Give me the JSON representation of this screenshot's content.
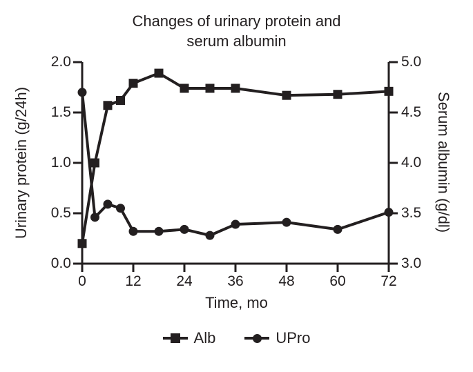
{
  "chart_data": {
    "type": "line",
    "title": "Changes of urinary protein and serum albumin",
    "title_lines": [
      "Changes of urinary protein and",
      "serum albumin"
    ],
    "xlabel": "Time, mo",
    "x": [
      0,
      3,
      6,
      9,
      12,
      18,
      24,
      30,
      36,
      48,
      60,
      72
    ],
    "x_ticks": [
      0,
      12,
      24,
      36,
      48,
      60,
      72
    ],
    "xlim": [
      0,
      72
    ],
    "left_axis": {
      "label": "Urinary protein (g/24h)",
      "ticks": [
        "0.0",
        "0.5",
        "1.0",
        "1.5",
        "2.0"
      ],
      "lim": [
        0,
        2
      ]
    },
    "right_axis": {
      "label": "Serum albumin (g/dl)",
      "ticks": [
        "3.0",
        "3.5",
        "4.0",
        "4.5",
        "5.0"
      ],
      "lim": [
        3,
        5
      ]
    },
    "series": [
      {
        "name": "Alb",
        "marker": "square",
        "axis": "right",
        "values": [
          3.2,
          4.0,
          4.57,
          4.62,
          4.79,
          4.89,
          4.74,
          4.74,
          4.74,
          4.67,
          4.68,
          4.71
        ]
      },
      {
        "name": "UPro",
        "marker": "circle",
        "axis": "left",
        "values": [
          1.7,
          0.46,
          0.59,
          0.55,
          0.32,
          0.32,
          0.34,
          0.28,
          0.39,
          0.41,
          0.34,
          0.51
        ]
      }
    ],
    "legend_position": "bottom",
    "grid": false,
    "line_color": "#231f20",
    "text_color": "#231f20",
    "background_color": "#ffffff"
  }
}
